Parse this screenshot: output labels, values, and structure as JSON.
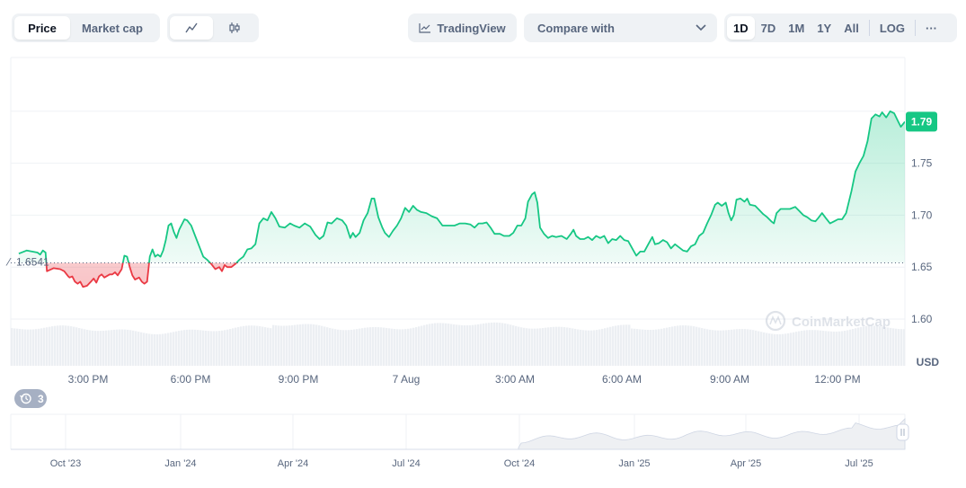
{
  "toolbar": {
    "metric_tabs": [
      "Price",
      "Market cap"
    ],
    "active_metric": "Price",
    "tradingview_label": "TradingView",
    "compare_label": "Compare with",
    "ranges": [
      "1D",
      "7D",
      "1M",
      "1Y",
      "All"
    ],
    "active_range": "1D",
    "log_label": "LOG",
    "more_label": "···"
  },
  "watermark": "CoinMarketCap",
  "events_badge": "3",
  "colors": {
    "up": "#16c784",
    "down": "#ea3943",
    "axis_text": "#58667e"
  },
  "chart_data": {
    "type": "line",
    "currency": "USD",
    "ylim": [
      1.6,
      1.8
    ],
    "y_ticks": [
      "1.60",
      "1.65",
      "1.70",
      "1.75"
    ],
    "current_price": "1.79",
    "reference_price": "1.6541",
    "reference_value": 1.6541,
    "x_tick_labels": [
      "3:00 PM",
      "6:00 PM",
      "9:00 PM",
      "7 Aug",
      "3:00 AM",
      "6:00 AM",
      "9:00 AM",
      "12:00 PM"
    ],
    "x_ticks_hours": [
      2.15,
      5.15,
      8.15,
      11.15,
      14.15,
      17.15,
      20.15,
      23.15
    ],
    "x_range_hours": [
      0,
      24.95
    ],
    "series": [
      {
        "values": [
          [
            0.3,
            1.663
          ],
          [
            0.6,
            1.666
          ],
          [
            1.0,
            1.664
          ],
          [
            1.1,
            1.662
          ],
          [
            1.2,
            1.666
          ],
          [
            1.3,
            1.664
          ],
          [
            1.35,
            1.646
          ],
          [
            1.6,
            1.649
          ],
          [
            1.85,
            1.648
          ],
          [
            2.0,
            1.646
          ],
          [
            2.15,
            1.641
          ],
          [
            2.2,
            1.64
          ],
          [
            2.3,
            1.641
          ],
          [
            2.4,
            1.636
          ],
          [
            2.5,
            1.634
          ],
          [
            2.6,
            1.636
          ],
          [
            2.7,
            1.631
          ],
          [
            2.85,
            1.632
          ],
          [
            3.0,
            1.636
          ],
          [
            3.1,
            1.639
          ],
          [
            3.2,
            1.635
          ],
          [
            3.3,
            1.641
          ],
          [
            3.4,
            1.643
          ],
          [
            3.5,
            1.64
          ],
          [
            3.7,
            1.643
          ],
          [
            3.8,
            1.643
          ],
          [
            3.9,
            1.645
          ],
          [
            4.0,
            1.642
          ],
          [
            4.15,
            1.648
          ],
          [
            4.25,
            1.661
          ],
          [
            4.35,
            1.66
          ],
          [
            4.45,
            1.65
          ],
          [
            4.55,
            1.642
          ],
          [
            4.65,
            1.638
          ],
          [
            4.8,
            1.64
          ],
          [
            4.9,
            1.636
          ],
          [
            5.0,
            1.634
          ],
          [
            5.1,
            1.636
          ],
          [
            5.2,
            1.66
          ],
          [
            5.3,
            1.667
          ],
          [
            5.4,
            1.66
          ],
          [
            5.5,
            1.662
          ],
          [
            5.6,
            1.66
          ],
          [
            5.7,
            1.666
          ],
          [
            5.8,
            1.676
          ],
          [
            5.9,
            1.69
          ],
          [
            6.0,
            1.692
          ],
          [
            6.1,
            1.684
          ],
          [
            6.2,
            1.678
          ],
          [
            6.3,
            1.686
          ],
          [
            6.5,
            1.696
          ],
          [
            6.6,
            1.695
          ],
          [
            6.75,
            1.69
          ],
          [
            6.9,
            1.68
          ],
          [
            7.05,
            1.67
          ],
          [
            7.2,
            1.66
          ],
          [
            7.35,
            1.657
          ],
          [
            7.5,
            1.653
          ],
          [
            7.65,
            1.648
          ],
          [
            7.8,
            1.65
          ],
          [
            7.9,
            1.646
          ],
          [
            8.0,
            1.652
          ],
          [
            8.1,
            1.65
          ],
          [
            8.25,
            1.65
          ],
          [
            8.4,
            1.653
          ],
          [
            8.55,
            1.657
          ],
          [
            8.7,
            1.66
          ],
          [
            8.85,
            1.667
          ],
          [
            9.0,
            1.668
          ],
          [
            9.15,
            1.672
          ],
          [
            9.3,
            1.692
          ],
          [
            9.45,
            1.697
          ],
          [
            9.6,
            1.695
          ],
          [
            9.75,
            1.703
          ],
          [
            9.9,
            1.697
          ],
          [
            10.05,
            1.689
          ],
          [
            10.25,
            1.688
          ],
          [
            10.45,
            1.692
          ],
          [
            10.6,
            1.69
          ],
          [
            10.8,
            1.688
          ],
          [
            11.0,
            1.692
          ],
          [
            11.2,
            1.689
          ],
          [
            11.4,
            1.681
          ],
          [
            11.55,
            1.677
          ],
          [
            11.7,
            1.68
          ],
          [
            11.85,
            1.693
          ],
          [
            12.0,
            1.692
          ],
          [
            12.2,
            1.697
          ],
          [
            12.4,
            1.695
          ],
          [
            12.55,
            1.69
          ],
          [
            12.7,
            1.678
          ],
          [
            12.8,
            1.683
          ],
          [
            12.9,
            1.679
          ],
          [
            13.05,
            1.683
          ],
          [
            13.2,
            1.695
          ],
          [
            13.35,
            1.702
          ],
          [
            13.5,
            1.716
          ],
          [
            13.6,
            1.716
          ],
          [
            13.75,
            1.698
          ],
          [
            13.9,
            1.688
          ],
          [
            14.0,
            1.683
          ],
          [
            14.15,
            1.679
          ],
          [
            14.3,
            1.685
          ],
          [
            14.45,
            1.69
          ],
          [
            14.6,
            1.697
          ],
          [
            14.75,
            1.707
          ],
          [
            14.9,
            1.703
          ],
          [
            15.05,
            1.709
          ],
          [
            15.2,
            1.705
          ],
          [
            15.35,
            1.703
          ],
          [
            15.55,
            1.702
          ],
          [
            15.75,
            1.699
          ],
          [
            15.95,
            1.697
          ],
          [
            16.15,
            1.69
          ],
          [
            16.4,
            1.69
          ],
          [
            16.6,
            1.69
          ],
          [
            16.8,
            1.692
          ],
          [
            17.0,
            1.692
          ],
          [
            17.2,
            1.691
          ],
          [
            17.35,
            1.688
          ],
          [
            17.5,
            1.692
          ],
          [
            17.65,
            1.692
          ],
          [
            17.8,
            1.693
          ],
          [
            17.95,
            1.688
          ],
          [
            18.1,
            1.682
          ],
          [
            18.3,
            1.682
          ],
          [
            18.45,
            1.68
          ],
          [
            18.65,
            1.68
          ],
          [
            18.8,
            1.683
          ],
          [
            18.95,
            1.69
          ],
          [
            19.1,
            1.69
          ],
          [
            19.25,
            1.697
          ],
          [
            19.35,
            1.713
          ],
          [
            19.5,
            1.72
          ],
          [
            19.6,
            1.722
          ],
          [
            19.7,
            1.712
          ],
          [
            19.8,
            1.688
          ],
          [
            19.95,
            1.682
          ],
          [
            20.1,
            1.678
          ],
          [
            20.25,
            1.68
          ],
          [
            20.4,
            1.679
          ],
          [
            20.6,
            1.68
          ],
          [
            20.8,
            1.677
          ],
          [
            20.95,
            1.682
          ],
          [
            21.05,
            1.686
          ],
          [
            21.15,
            1.68
          ],
          [
            21.3,
            1.677
          ],
          [
            21.45,
            1.677
          ],
          [
            21.6,
            1.679
          ],
          [
            21.75,
            1.676
          ],
          [
            21.9,
            1.68
          ],
          [
            22.05,
            1.678
          ],
          [
            22.2,
            1.68
          ],
          [
            22.35,
            1.673
          ],
          [
            22.5,
            1.677
          ],
          [
            22.65,
            1.676
          ],
          [
            22.8,
            1.68
          ],
          [
            22.95,
            1.676
          ],
          [
            23.1,
            1.675
          ],
          [
            23.25,
            1.668
          ],
          [
            23.4,
            1.661
          ],
          [
            23.55,
            1.665
          ],
          [
            23.7,
            1.665
          ],
          [
            23.85,
            1.672
          ],
          [
            24.0,
            1.679
          ],
          [
            24.1,
            1.672
          ],
          [
            24.25,
            1.673
          ],
          [
            24.4,
            1.676
          ],
          [
            24.55,
            1.674
          ],
          [
            24.7,
            1.668
          ],
          [
            24.85,
            1.672
          ],
          [
            25.0,
            1.669
          ],
          [
            25.15,
            1.666
          ],
          [
            25.3,
            1.665
          ],
          [
            25.45,
            1.67
          ],
          [
            25.6,
            1.672
          ],
          [
            25.75,
            1.68
          ],
          [
            25.9,
            1.683
          ],
          [
            26.05,
            1.692
          ],
          [
            26.2,
            1.7
          ],
          [
            26.35,
            1.71
          ],
          [
            26.45,
            1.712
          ],
          [
            26.6,
            1.709
          ],
          [
            26.75,
            1.712
          ],
          [
            26.85,
            1.702
          ],
          [
            26.95,
            1.695
          ],
          [
            27.05,
            1.7
          ],
          [
            27.15,
            1.715
          ],
          [
            27.3,
            1.716
          ],
          [
            27.45,
            1.713
          ],
          [
            27.55,
            1.716
          ],
          [
            27.65,
            1.71
          ],
          [
            27.85,
            1.709
          ],
          [
            28.0,
            1.705
          ],
          [
            28.15,
            1.701
          ],
          [
            28.3,
            1.698
          ],
          [
            28.45,
            1.694
          ],
          [
            28.55,
            1.692
          ],
          [
            28.65,
            1.702
          ],
          [
            28.8,
            1.706
          ],
          [
            28.95,
            1.706
          ],
          [
            29.15,
            1.706
          ],
          [
            29.35,
            1.708
          ],
          [
            29.5,
            1.704
          ],
          [
            29.65,
            1.7
          ],
          [
            29.8,
            1.698
          ],
          [
            29.95,
            1.695
          ],
          [
            30.1,
            1.694
          ],
          [
            30.2,
            1.697
          ],
          [
            30.35,
            1.702
          ],
          [
            30.5,
            1.697
          ],
          [
            30.65,
            1.692
          ],
          [
            30.8,
            1.694
          ],
          [
            30.95,
            1.696
          ],
          [
            31.1,
            1.696
          ],
          [
            31.25,
            1.702
          ],
          [
            31.45,
            1.723
          ],
          [
            31.6,
            1.742
          ],
          [
            31.75,
            1.75
          ],
          [
            31.9,
            1.757
          ],
          [
            32.05,
            1.771
          ],
          [
            32.2,
            1.793
          ],
          [
            32.35,
            1.797
          ],
          [
            32.5,
            1.795
          ],
          [
            32.6,
            1.799
          ],
          [
            32.75,
            1.794
          ],
          [
            32.9,
            1.8
          ],
          [
            33.05,
            1.798
          ],
          [
            33.2,
            1.79
          ],
          [
            33.3,
            1.785
          ],
          [
            33.45,
            1.79
          ]
        ]
      }
    ]
  },
  "navigator": {
    "tick_labels": [
      "Oct '23",
      "Jan '24",
      "Apr '24",
      "Jul '24",
      "Oct '24",
      "Jan '25",
      "Apr '25",
      "Jul '25"
    ]
  }
}
